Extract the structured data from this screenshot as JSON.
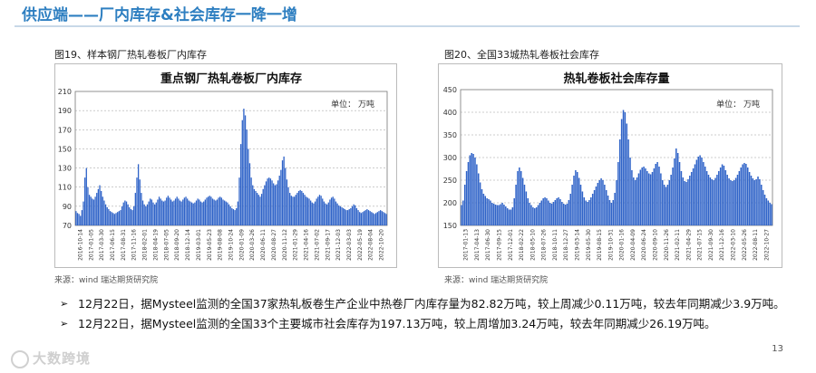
{
  "header": {
    "title": "供应端——厂内库存&社会库存一降一增"
  },
  "figures": [
    {
      "label": "图19、样本钢厂热轧卷板厂内库存",
      "source": "来源：wind   瑞达期货研究院"
    },
    {
      "label": "图20、全国33城热轧卷板社会库存",
      "source": "来源：wind   瑞达期货研究院"
    }
  ],
  "bullets": [
    {
      "mark": "➢",
      "text": "12月22日，据Mysteel监测的全国37家热轧板卷生产企业中热卷厂内库存量为82.82万吨，较上周减少0.11万吨，较去年同期减少3.9万吨。"
    },
    {
      "mark": "➢",
      "text": "12月22日，据Mysteel监测的全国33个主要城市社会库存为197.13万吨，较上周增加3.24万吨，较去年同期减少26.19万吨。"
    }
  ],
  "footer": {
    "page": "13",
    "logo": "大数跨境"
  },
  "colors": {
    "title": "#2e7fc1",
    "bar": "#2f63c8",
    "grid": "#999999"
  },
  "chart_data": [
    {
      "type": "bar",
      "title": "重点钢厂热轧卷板厂内库存",
      "unit_note": "单位：  万吨",
      "ylim": [
        70,
        210
      ],
      "yticks": [
        70,
        90,
        110,
        130,
        150,
        170,
        190,
        210
      ],
      "grid": true,
      "xtick_labels": [
        "2016-10-14",
        "2017-01-05",
        "2017-03-30",
        "2017-06-15",
        "2017-08-31",
        "2017-11-16",
        "2018-02-01",
        "2018-04-19",
        "2018-07-05",
        "2018-09-20",
        "2018-12-14",
        "2019-03-01",
        "2019-05-23",
        "2019-08-08",
        "2019-10-24",
        "2020-01-09",
        "2020-03-26",
        "2020-06-11",
        "2020-08-27",
        "2020-11-12",
        "2021-01-29",
        "2021-04-16",
        "2021-07-02",
        "2021-09-17",
        "2021-12-03",
        "2022-03-03",
        "2022-05-19",
        "2022-08-04",
        "2022-10-20"
      ],
      "values": [
        85,
        83,
        82,
        80,
        86,
        95,
        120,
        130,
        110,
        102,
        100,
        98,
        97,
        100,
        104,
        108,
        112,
        106,
        100,
        96,
        92,
        89,
        87,
        85,
        84,
        83,
        82,
        83,
        84,
        85,
        86,
        90,
        94,
        96,
        95,
        92,
        89,
        87,
        86,
        90,
        104,
        120,
        134,
        118,
        104,
        96,
        92,
        90,
        92,
        95,
        98,
        97,
        94,
        92,
        94,
        97,
        100,
        98,
        96,
        95,
        96,
        99,
        101,
        99,
        97,
        95,
        96,
        98,
        100,
        98,
        96,
        95,
        97,
        99,
        100,
        98,
        96,
        95,
        94,
        93,
        94,
        96,
        98,
        97,
        95,
        94,
        95,
        97,
        99,
        100,
        101,
        100,
        98,
        97,
        96,
        97,
        99,
        100,
        99,
        97,
        96,
        95,
        94,
        92,
        90,
        88,
        87,
        86,
        88,
        95,
        120,
        155,
        180,
        192,
        185,
        170,
        150,
        135,
        120,
        112,
        108,
        106,
        104,
        102,
        100,
        103,
        108,
        112,
        116,
        119,
        120,
        119,
        117,
        114,
        112,
        113,
        117,
        122,
        128,
        138,
        142,
        130,
        118,
        110,
        104,
        101,
        100,
        100,
        102,
        104,
        106,
        107,
        106,
        104,
        102,
        100,
        99,
        98,
        96,
        94,
        93,
        95,
        98,
        100,
        102,
        101,
        98,
        95,
        93,
        92,
        94,
        97,
        99,
        100,
        98,
        95,
        93,
        91,
        90,
        89,
        88,
        87,
        86,
        86,
        87,
        88,
        90,
        92,
        91,
        88,
        86,
        84,
        83,
        84,
        85,
        86,
        87,
        86,
        85,
        84,
        83,
        82,
        83,
        84,
        85,
        86,
        85,
        84,
        83,
        82
      ]
    },
    {
      "type": "bar",
      "title": "热轧卷板社会库存量",
      "unit_note": "单位：  万吨",
      "ylim": [
        150,
        450
      ],
      "yticks": [
        150,
        200,
        250,
        300,
        350,
        400,
        450
      ],
      "grid": true,
      "xtick_labels": [
        "2017-01-13",
        "2017-04-13",
        "2017-06-30",
        "2017-09-15",
        "2017-12-01",
        "2018-02-22",
        "2018-05-10",
        "2018-07-26",
        "2018-10-11",
        "2018-12-27",
        "2019-03-14",
        "2019-05-30",
        "2019-08-15",
        "2019-10-31",
        "2020-01-16",
        "2020-04-09",
        "2020-06-24",
        "2020-09-10",
        "2020-11-26",
        "2021-02-11",
        "2021-04-29",
        "2021-07-15",
        "2021-09-30",
        "2021-12-16",
        "2022-03-10",
        "2022-05-26",
        "2022-08-11",
        "2022-10-27"
      ],
      "values": [
        195,
        205,
        240,
        270,
        290,
        305,
        310,
        308,
        300,
        285,
        265,
        245,
        230,
        220,
        215,
        210,
        208,
        205,
        200,
        198,
        196,
        195,
        195,
        197,
        200,
        196,
        192,
        188,
        185,
        185,
        190,
        210,
        240,
        270,
        278,
        270,
        255,
        240,
        225,
        210,
        200,
        195,
        190,
        188,
        190,
        195,
        200,
        205,
        210,
        212,
        210,
        205,
        200,
        198,
        202,
        206,
        210,
        212,
        208,
        202,
        198,
        196,
        198,
        206,
        220,
        240,
        260,
        272,
        268,
        255,
        240,
        225,
        212,
        205,
        202,
        206,
        212,
        220,
        228,
        236,
        244,
        250,
        254,
        250,
        240,
        228,
        216,
        206,
        200,
        206,
        222,
        250,
        290,
        340,
        385,
        405,
        400,
        375,
        340,
        300,
        272,
        256,
        250,
        256,
        265,
        273,
        278,
        280,
        276,
        270,
        265,
        263,
        268,
        276,
        286,
        290,
        280,
        265,
        250,
        240,
        235,
        240,
        250,
        262,
        278,
        298,
        320,
        310,
        290,
        270,
        256,
        248,
        246,
        252,
        260,
        268,
        276,
        285,
        295,
        302,
        305,
        300,
        290,
        280,
        270,
        262,
        256,
        252,
        250,
        255,
        262,
        270,
        278,
        285,
        282,
        272,
        262,
        254,
        250,
        248,
        250,
        255,
        262,
        270,
        278,
        285,
        288,
        286,
        278,
        268,
        260,
        254,
        250,
        252,
        258,
        252,
        240,
        228,
        218,
        210,
        205,
        200,
        197
      ]
    }
  ]
}
